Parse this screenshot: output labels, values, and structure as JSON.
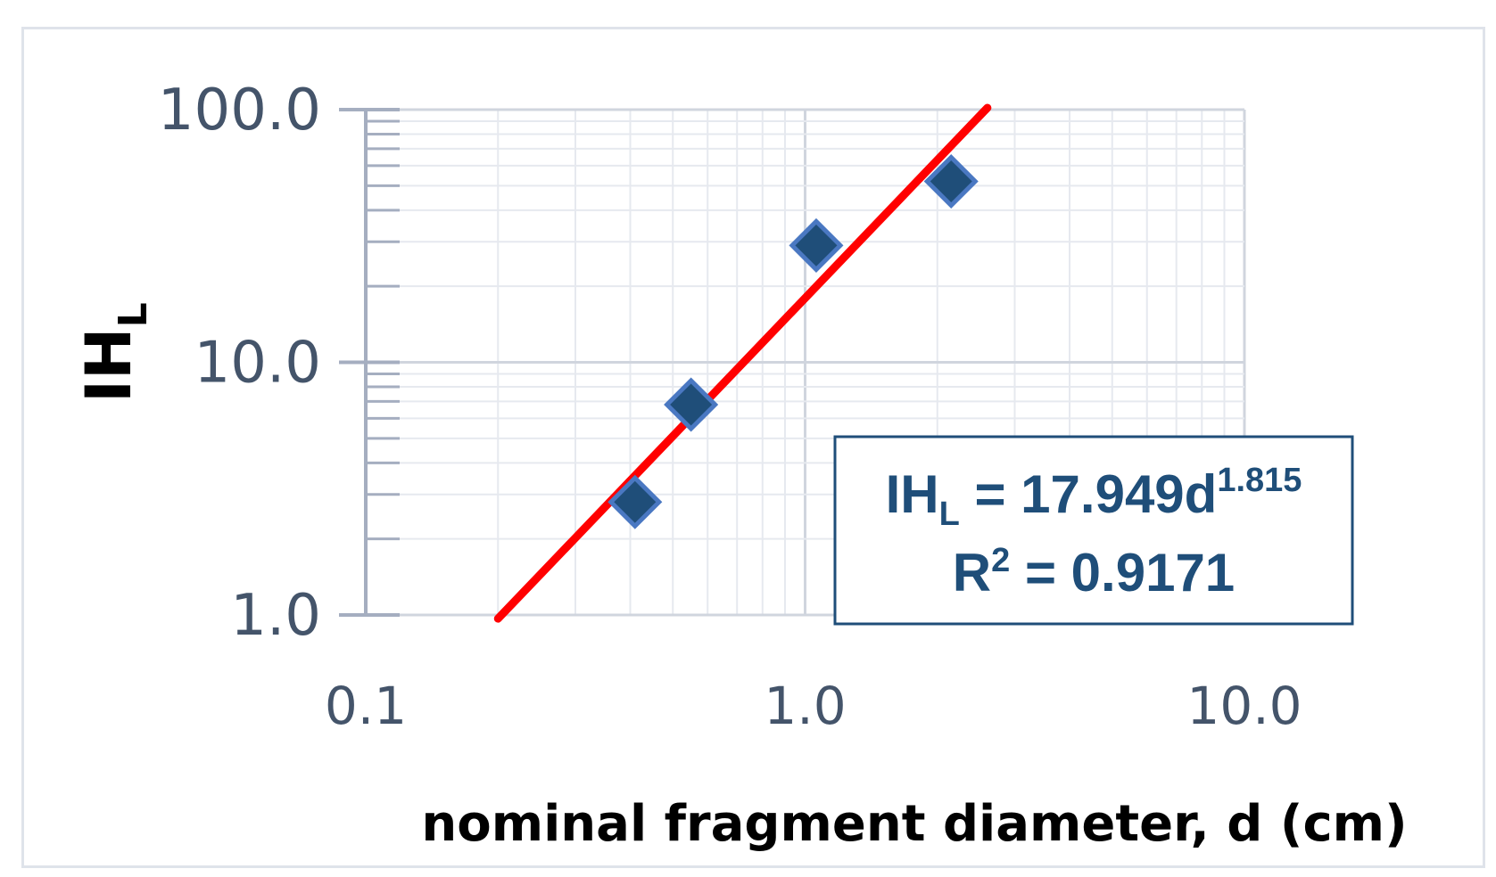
{
  "chart_data": {
    "type": "scatter",
    "x_scale": "log",
    "y_scale": "log",
    "xlim": [
      0.1,
      10.0
    ],
    "ylim": [
      1.0,
      100.0
    ],
    "x_ticks": [
      "0.1",
      "1.0",
      "10.0"
    ],
    "y_ticks": [
      "1.0",
      "10.0",
      "100.0"
    ],
    "xlabel": "nominal fragment diameter, d (cm)",
    "ylabel_main": "IH",
    "ylabel_sub": "L",
    "grid": true,
    "series": [
      {
        "points": [
          {
            "x": 0.41,
            "y": 2.8
          },
          {
            "x": 0.55,
            "y": 6.8
          },
          {
            "x": 1.06,
            "y": 29.0
          },
          {
            "x": 2.15,
            "y": 52.0
          }
        ],
        "marker": "diamond",
        "color": "#1f4e79"
      }
    ],
    "trendline": {
      "type": "power",
      "coefficient": 17.949,
      "exponent": 1.815,
      "x_start": 0.2,
      "x_end": 2.6,
      "color": "#ff0000"
    },
    "annotation": {
      "eq_main": "IH",
      "eq_sub": "L",
      "eq_rest": " = 17.949d",
      "eq_exp": "1.815",
      "r2_main": "R",
      "r2_exp": "2",
      "r2_rest": " = 0.9171",
      "border_color": "#1f4e79"
    }
  }
}
